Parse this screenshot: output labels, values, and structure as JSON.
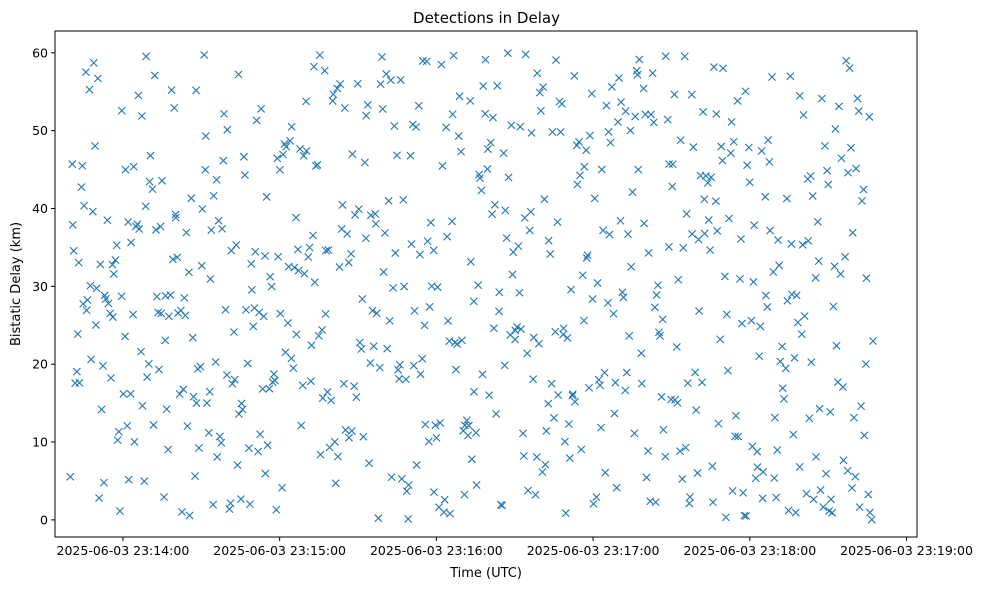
{
  "chart_data": {
    "type": "scatter",
    "title": "Detections in Delay",
    "xlabel": "Time (UTC)",
    "ylabel": "Bistatic Delay (km)",
    "marker": "x",
    "color": "#1f77b4",
    "grid": false,
    "legend": "none",
    "x_start": "2025-06-03 23:13:40",
    "xlim": [
      "2025-06-03 23:13:34",
      "2025-06-03 23:19:04"
    ],
    "ylim": [
      -2.2,
      62.8
    ],
    "x_ticks": [
      "2025-06-03 23:14:00",
      "2025-06-03 23:15:00",
      "2025-06-03 23:16:00",
      "2025-06-03 23:17:00",
      "2025-06-03 23:18:00",
      "2025-06-03 23:19:00"
    ],
    "y_ticks": [
      "0",
      "10",
      "20",
      "30",
      "40",
      "50",
      "60"
    ],
    "y_tick_values": [
      0,
      10,
      20,
      30,
      40,
      50,
      60
    ],
    "x_tick_seconds": [
      20,
      80,
      140,
      200,
      260,
      320
    ],
    "point_count": 700,
    "seed": 20250603
  }
}
